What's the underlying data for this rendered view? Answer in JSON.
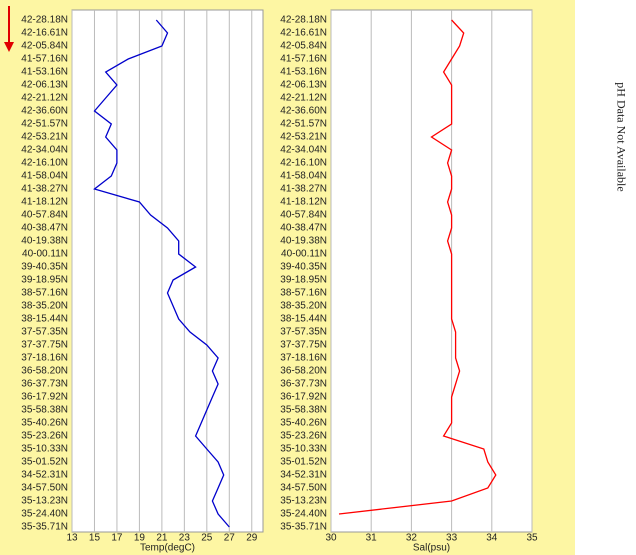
{
  "annotation": "pH Data Not Available",
  "chart_data": [
    {
      "type": "line",
      "xlabel": "Temp(degC)",
      "categories": [
        "42-28.18N",
        "42-16.61N",
        "42-05.84N",
        "41-57.16N",
        "41-53.16N",
        "42-06.13N",
        "42-21.12N",
        "42-36.60N",
        "42-51.57N",
        "42-53.21N",
        "42-34.04N",
        "42-16.10N",
        "41-58.04N",
        "41-38.27N",
        "41-18.12N",
        "40-57.84N",
        "40-38.47N",
        "40-19.38N",
        "40-00.11N",
        "39-40.35N",
        "39-18.95N",
        "38-57.16N",
        "38-35.20N",
        "38-15.44N",
        "37-57.35N",
        "37-37.75N",
        "37-18.16N",
        "36-58.20N",
        "36-37.73N",
        "36-17.92N",
        "35-58.38N",
        "35-40.26N",
        "35-23.26N",
        "35-10.33N",
        "35-01.52N",
        "34-52.31N",
        "34-57.50N",
        "35-13.23N",
        "35-24.40N",
        "35-35.71N"
      ],
      "series": [
        {
          "name": "Temp",
          "color": "#0000cc",
          "values": [
            20.5,
            21.5,
            21,
            18,
            16,
            17,
            16,
            15,
            16.5,
            16,
            17,
            17,
            16.5,
            15,
            19,
            20,
            21.5,
            22.5,
            22.5,
            24,
            22,
            21.5,
            22,
            22.5,
            23.5,
            25,
            26,
            25.5,
            26,
            25.5,
            25,
            24.5,
            24,
            25,
            26,
            26.5,
            26,
            25.5,
            26,
            27
          ]
        }
      ],
      "xlim": [
        13,
        30
      ],
      "xticks": [
        13,
        15,
        17,
        19,
        21,
        23,
        25,
        27,
        29
      ],
      "grid": true
    },
    {
      "type": "line",
      "xlabel": "Sal(psu)",
      "categories": [
        "42-28.18N",
        "42-16.61N",
        "42-05.84N",
        "41-57.16N",
        "41-53.16N",
        "42-06.13N",
        "42-21.12N",
        "42-36.60N",
        "42-51.57N",
        "42-53.21N",
        "42-34.04N",
        "42-16.10N",
        "41-58.04N",
        "41-38.27N",
        "41-18.12N",
        "40-57.84N",
        "40-38.47N",
        "40-19.38N",
        "40-00.11N",
        "39-40.35N",
        "39-18.95N",
        "38-57.16N",
        "38-35.20N",
        "38-15.44N",
        "37-57.35N",
        "37-37.75N",
        "37-18.16N",
        "36-58.20N",
        "36-37.73N",
        "36-17.92N",
        "35-58.38N",
        "35-40.26N",
        "35-23.26N",
        "35-10.33N",
        "35-01.52N",
        "34-52.31N",
        "34-57.50N",
        "35-13.23N",
        "35-24.40N",
        "35-35.71N"
      ],
      "series": [
        {
          "name": "Sal",
          "color": "#ff0000",
          "values": [
            33,
            33.3,
            33.2,
            33,
            32.8,
            33,
            33,
            33,
            33,
            32.5,
            33,
            32.9,
            33,
            33,
            32.9,
            33,
            33,
            32.9,
            33,
            33,
            33,
            33,
            33,
            33,
            33.1,
            33.1,
            33.1,
            33.2,
            33.1,
            33,
            33,
            33,
            32.8,
            33.8,
            33.9,
            34.1,
            33.9,
            33,
            30.2,
            null
          ]
        }
      ],
      "xlim": [
        30,
        35
      ],
      "xticks": [
        30,
        31,
        32,
        33,
        34,
        35
      ],
      "grid": true
    }
  ]
}
